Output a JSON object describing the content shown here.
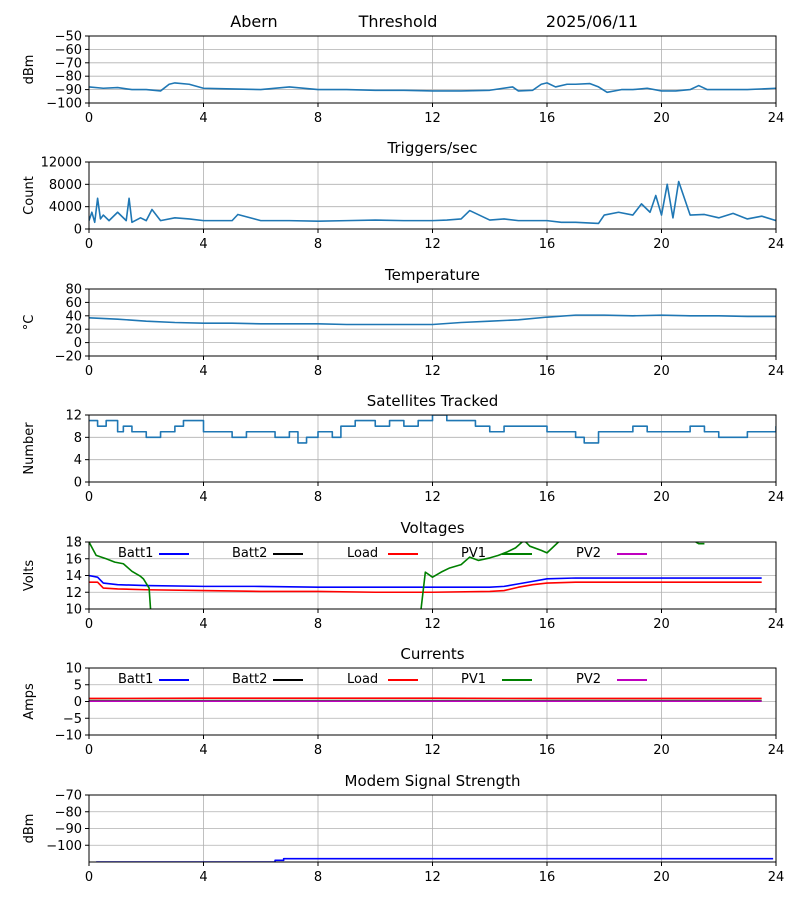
{
  "header": {
    "station": "Abern",
    "mode": "Threshold",
    "date": "2025/06/11"
  },
  "legend_labels": {
    "batt1": "Batt1",
    "batt2": "Batt2",
    "load": "Load",
    "pv1": "PV1",
    "pv2": "PV2"
  },
  "colors": {
    "default": "#1f77b4",
    "batt1": "#0000ff",
    "batt2": "#000000",
    "load": "#ff0000",
    "pv1": "#008000",
    "pv2": "#bf00bf",
    "grid": "#b0b0b0"
  },
  "chart_data": [
    {
      "type": "line",
      "title": "",
      "ylabel": "dBm",
      "xlim": [
        0,
        24
      ],
      "ylim": [
        -100,
        -50
      ],
      "xticks": [
        0,
        4,
        8,
        12,
        16,
        20,
        24
      ],
      "yticks": [
        -100,
        -90,
        -80,
        -70,
        -60,
        -50
      ],
      "grid": true,
      "series": [
        {
          "key": "default",
          "x": [
            0,
            0.5,
            1,
            1.5,
            2,
            2.5,
            2.8,
            3.0,
            3.5,
            4,
            5,
            6,
            7,
            8,
            9,
            10,
            11,
            12,
            13,
            14,
            14.8,
            15,
            15.5,
            15.8,
            16.0,
            16.3,
            16.7,
            17,
            17.5,
            17.8,
            18.1,
            18.6,
            19,
            19.5,
            20,
            20.5,
            21,
            21.3,
            21.6,
            22,
            23,
            24
          ],
          "y": [
            -88,
            -89,
            -88.5,
            -90,
            -90,
            -91,
            -86,
            -85,
            -86,
            -89,
            -89.5,
            -90,
            -88,
            -90,
            -90,
            -90.5,
            -90.5,
            -91,
            -91,
            -90.5,
            -88,
            -91,
            -90.5,
            -86,
            -85,
            -88,
            -86,
            -86,
            -85.5,
            -88,
            -92,
            -90,
            -90,
            -89,
            -91,
            -91,
            -90,
            -87,
            -90,
            -90,
            -90,
            -89
          ]
        }
      ]
    },
    {
      "type": "line",
      "title": "Triggers/sec",
      "ylabel": "Count",
      "xlim": [
        0,
        24
      ],
      "ylim": [
        0,
        12000
      ],
      "xticks": [
        0,
        4,
        8,
        12,
        16,
        20,
        24
      ],
      "yticks": [
        0,
        4000,
        8000,
        12000
      ],
      "grid": true,
      "series": [
        {
          "key": "default",
          "x": [
            0,
            0.1,
            0.2,
            0.3,
            0.4,
            0.5,
            0.7,
            1.0,
            1.3,
            1.4,
            1.5,
            1.8,
            2.0,
            2.2,
            2.5,
            3.0,
            3.5,
            4,
            5,
            5.2,
            6,
            7,
            8,
            9,
            10,
            11,
            12,
            12.5,
            13,
            13.3,
            14,
            14.5,
            15,
            16,
            16.5,
            17,
            17.8,
            18.0,
            18.5,
            19,
            19.3,
            19.6,
            19.8,
            20.0,
            20.2,
            20.4,
            20.6,
            21,
            21.5,
            22,
            22.5,
            23,
            23.5,
            24
          ],
          "y": [
            1500,
            3000,
            1200,
            5500,
            1800,
            2500,
            1500,
            3000,
            1500,
            5500,
            1200,
            2000,
            1500,
            3500,
            1500,
            2000,
            1800,
            1500,
            1500,
            2600,
            1500,
            1500,
            1400,
            1500,
            1600,
            1500,
            1500,
            1600,
            1800,
            3300,
            1600,
            1800,
            1500,
            1500,
            1200,
            1200,
            1000,
            2500,
            3000,
            2500,
            4500,
            3000,
            6000,
            2500,
            8000,
            2000,
            8500,
            2500,
            2600,
            2000,
            2800,
            1800,
            2300,
            1500
          ]
        }
      ]
    },
    {
      "type": "line",
      "title": "Temperature",
      "ylabel": "°C",
      "xlim": [
        0,
        24
      ],
      "ylim": [
        -20,
        80
      ],
      "xticks": [
        0,
        4,
        8,
        12,
        16,
        20,
        24
      ],
      "yticks": [
        -20,
        0,
        20,
        40,
        60,
        80
      ],
      "grid": true,
      "series": [
        {
          "key": "default",
          "x": [
            0,
            1,
            2,
            3,
            4,
            5,
            6,
            7,
            8,
            9,
            10,
            11,
            12,
            13,
            14,
            15,
            16,
            17,
            18,
            19,
            20,
            21,
            22,
            23,
            24
          ],
          "y": [
            37,
            35,
            32,
            30,
            29,
            29,
            28,
            28,
            28,
            27,
            27,
            27,
            27,
            30,
            32,
            34,
            38,
            41,
            41,
            40,
            41,
            40,
            40,
            39,
            39
          ]
        }
      ]
    },
    {
      "type": "line",
      "title": "Satellites Tracked",
      "ylabel": "Number",
      "xlim": [
        0,
        24
      ],
      "ylim": [
        0,
        12
      ],
      "xticks": [
        0,
        4,
        8,
        12,
        16,
        20,
        24
      ],
      "yticks": [
        0,
        4,
        8,
        12
      ],
      "grid": true,
      "series": [
        {
          "key": "default",
          "step": true,
          "x": [
            0,
            0.3,
            0.6,
            1.0,
            1.2,
            1.5,
            2.0,
            2.5,
            3.0,
            3.3,
            4.0,
            4.5,
            5.0,
            5.5,
            6.0,
            6.5,
            7.0,
            7.3,
            7.6,
            8.0,
            8.5,
            8.8,
            9.3,
            10.0,
            10.5,
            11.0,
            11.5,
            12.0,
            12.5,
            13.0,
            13.5,
            14.0,
            14.5,
            15.0,
            15.5,
            16.0,
            16.5,
            17.0,
            17.3,
            17.8,
            18.5,
            19.0,
            19.5,
            20.0,
            20.5,
            21.0,
            21.5,
            22.0,
            22.5,
            23.0,
            23.5,
            24
          ],
          "y": [
            11,
            10,
            11,
            9,
            10,
            9,
            8,
            9,
            10,
            11,
            9,
            9,
            8,
            9,
            9,
            8,
            9,
            7,
            8,
            9,
            8,
            10,
            11,
            10,
            11,
            10,
            11,
            12,
            11,
            11,
            10,
            9,
            10,
            10,
            10,
            9,
            9,
            8,
            7,
            9,
            9,
            10,
            9,
            9,
            9,
            10,
            9,
            8,
            8,
            9,
            9,
            10
          ]
        }
      ]
    },
    {
      "type": "line",
      "title": "Voltages",
      "ylabel": "Volts",
      "xlim": [
        0,
        24
      ],
      "ylim": [
        10,
        18
      ],
      "xticks": [
        0,
        4,
        8,
        12,
        16,
        20,
        24
      ],
      "yticks": [
        10,
        12,
        14,
        16,
        18
      ],
      "grid": true,
      "legend": {
        "placement": "top-inline",
        "keys": [
          "batt1",
          "batt2",
          "load",
          "pv1",
          "pv2"
        ]
      },
      "series": [
        {
          "key": "batt1",
          "x": [
            0,
            0.3,
            0.5,
            1,
            2,
            4,
            6,
            8,
            10,
            12,
            14,
            14.5,
            15,
            15.5,
            16,
            17,
            18,
            20,
            22,
            23.5
          ],
          "y": [
            14.0,
            13.8,
            13.1,
            12.9,
            12.8,
            12.7,
            12.7,
            12.6,
            12.6,
            12.6,
            12.6,
            12.7,
            13.0,
            13.3,
            13.6,
            13.7,
            13.7,
            13.7,
            13.7,
            13.7
          ]
        },
        {
          "key": "load",
          "x": [
            0,
            0.3,
            0.5,
            1,
            2,
            4,
            6,
            8,
            10,
            12,
            14,
            14.5,
            15,
            15.5,
            16,
            17,
            18,
            20,
            22,
            23.5
          ],
          "y": [
            13.2,
            13.2,
            12.5,
            12.4,
            12.3,
            12.2,
            12.1,
            12.1,
            12.0,
            12.0,
            12.1,
            12.2,
            12.6,
            12.9,
            13.1,
            13.2,
            13.2,
            13.2,
            13.2,
            13.2
          ]
        },
        {
          "key": "pv1",
          "segments": [
            {
              "x": [
                0,
                0.25,
                0.6,
                0.9,
                1.2,
                1.5,
                1.8,
                1.9,
                2.1,
                2.15
              ],
              "y": [
                18.0,
                16.4,
                16.0,
                15.6,
                15.4,
                14.5,
                13.9,
                13.6,
                12.5,
                10.0
              ]
            },
            {
              "x": [
                11.6,
                11.75,
                12.0,
                12.3,
                12.6,
                13.0,
                13.3,
                13.6,
                14.0,
                14.3,
                14.6,
                14.9,
                15.2,
                15.4,
                15.8,
                16.0,
                16.4
              ],
              "y": [
                10.0,
                14.4,
                13.8,
                14.4,
                14.9,
                15.3,
                16.2,
                15.8,
                16.1,
                16.4,
                16.8,
                17.3,
                18.2,
                17.5,
                17.0,
                16.7,
                18.0
              ]
            },
            {
              "x": [
                21.2,
                21.3,
                21.5
              ],
              "y": [
                18.0,
                17.8,
                17.8
              ]
            }
          ]
        }
      ]
    },
    {
      "type": "line",
      "title": "Currents",
      "ylabel": "Amps",
      "xlim": [
        0,
        24
      ],
      "ylim": [
        -10,
        10
      ],
      "xticks": [
        0,
        4,
        8,
        12,
        16,
        20,
        24
      ],
      "yticks": [
        -10,
        -5,
        0,
        5,
        10
      ],
      "grid": true,
      "legend": {
        "placement": "top-inline",
        "keys": [
          "batt1",
          "batt2",
          "load",
          "pv1",
          "pv2"
        ]
      },
      "series": [
        {
          "key": "load",
          "x": [
            0,
            4,
            8,
            12,
            16,
            20,
            23.5
          ],
          "y": [
            0.9,
            1.0,
            1.0,
            1.0,
            0.9,
            0.9,
            0.9
          ]
        },
        {
          "key": "pv1",
          "x": [
            0,
            23.5
          ],
          "y": [
            0.3,
            0.3
          ]
        },
        {
          "key": "pv2",
          "x": [
            0,
            23.5
          ],
          "y": [
            0.1,
            0.1
          ]
        }
      ]
    },
    {
      "type": "line",
      "title": "Modem Signal Strength",
      "ylabel": "dBm",
      "xlim": [
        0,
        24
      ],
      "ylim": [
        -110,
        -70
      ],
      "xticks": [
        0,
        4,
        8,
        12,
        16,
        20,
        24
      ],
      "yticks": [
        -100,
        -90,
        -80,
        -70
      ],
      "grid": true,
      "series": [
        {
          "key": "batt1",
          "step": true,
          "x": [
            0.25,
            6.5,
            6.8,
            23.9
          ],
          "y": [
            -110,
            -109,
            -108,
            -108
          ]
        }
      ]
    }
  ]
}
